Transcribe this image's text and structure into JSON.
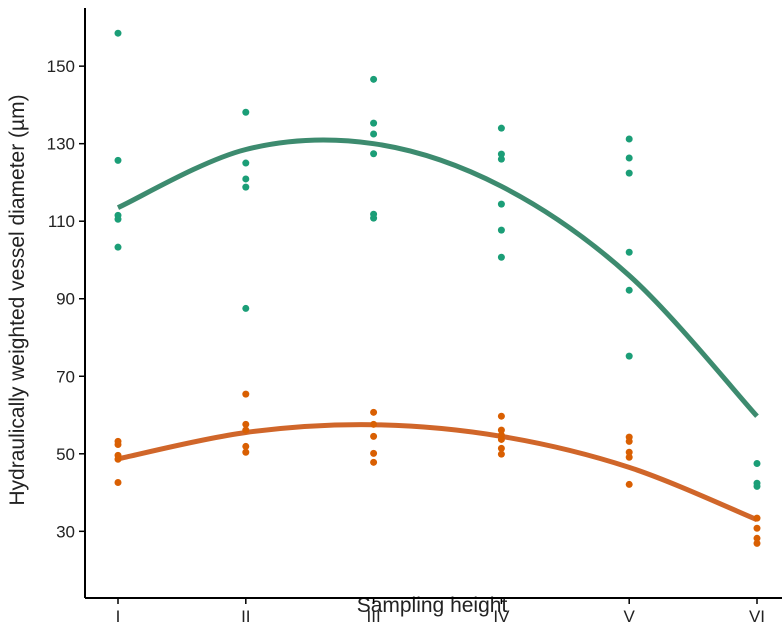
{
  "chart_data": {
    "type": "scatter",
    "x_label": "Sampling height",
    "y_label": "Hydraulically weighted vessel diameter (µm)",
    "categories": [
      "I",
      "II",
      "III",
      "IV",
      "V",
      "VI"
    ],
    "ylim": [
      12.8,
      165
    ],
    "yticks": [
      30,
      50,
      70,
      90,
      110,
      130,
      150
    ],
    "grid": false,
    "series": [
      {
        "color": "#1b9e77",
        "values": [
          [
            158.5,
            125.7,
            111.5,
            110.5,
            103.3
          ],
          [
            138.1,
            125,
            120.9,
            118.8,
            87.5
          ],
          [
            146.6,
            135.3,
            132.5,
            127.4,
            111.8,
            110.8
          ],
          [
            134,
            127.3,
            126,
            114.4,
            107.7,
            100.7
          ],
          [
            131.2,
            126.3,
            122.4,
            102,
            92.2,
            75.2
          ],
          [
            47.5,
            42.4,
            41.6
          ]
        ]
      },
      {
        "color": "#d95f02",
        "values": [
          [
            53.2,
            52.4,
            49.6,
            48.6,
            42.6
          ],
          [
            65.4,
            57.6,
            56.1,
            51.9,
            50.4
          ],
          [
            60.7,
            57.6,
            54.5,
            50.1,
            47.8
          ],
          [
            59.7,
            56.1,
            54.8,
            53.7,
            51.4,
            49.9
          ],
          [
            54.3,
            53.2,
            50.4,
            49.1,
            42.1
          ],
          [
            33.4,
            30.8,
            28.2,
            26.9
          ]
        ]
      }
    ],
    "fits": [
      {
        "color": "#3d8b6f",
        "values": [
          113.5,
          128.5,
          130,
          119,
          96,
          59.7
        ]
      },
      {
        "color": "#d0662a",
        "values": [
          48.7,
          55.5,
          57.5,
          54.5,
          46.5,
          33
        ]
      }
    ]
  }
}
